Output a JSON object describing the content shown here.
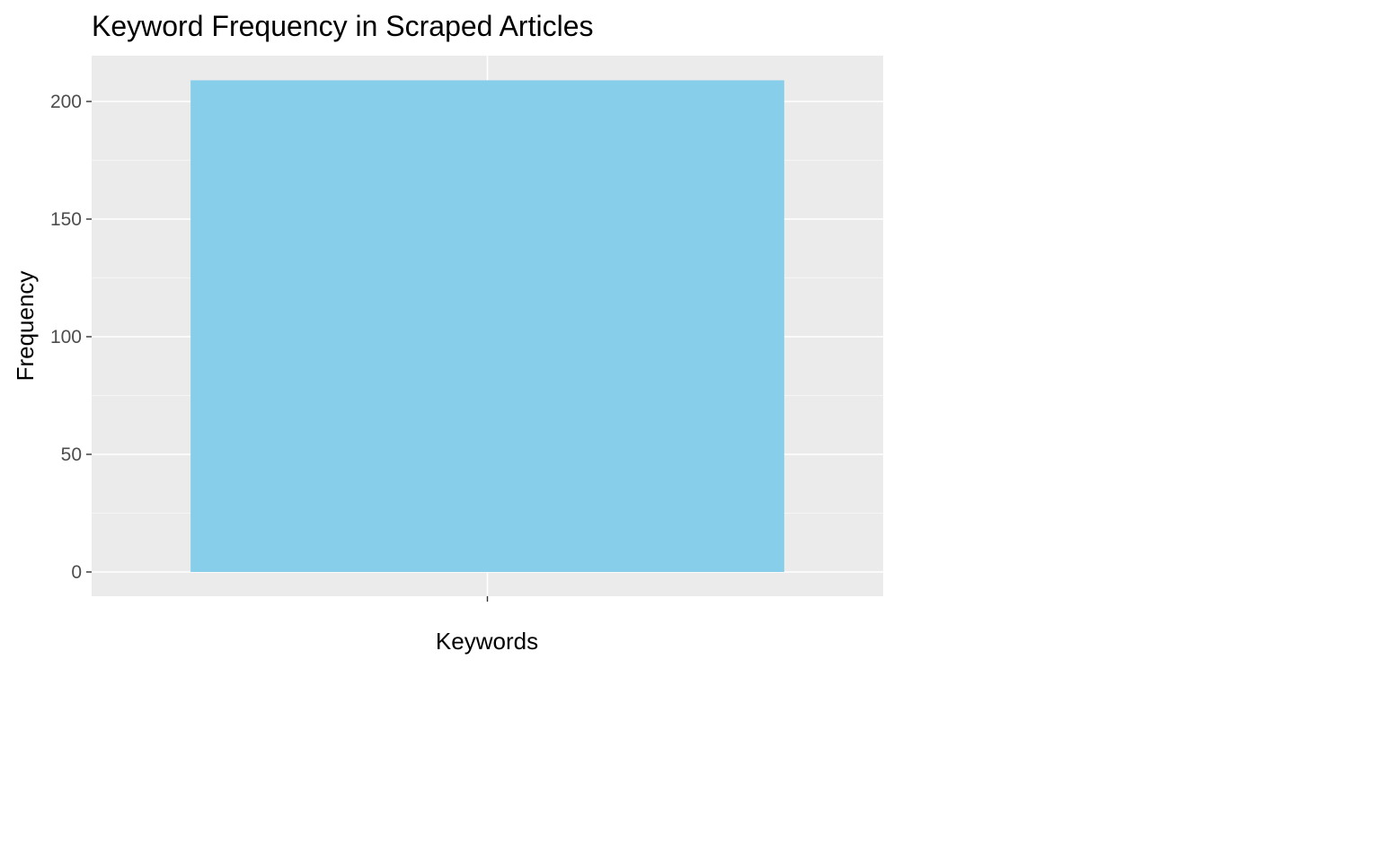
{
  "chart_data": {
    "type": "bar",
    "title": "Keyword Frequency in Scraped Articles",
    "xlabel": "Keywords",
    "ylabel": "Frequency",
    "categories": [
      ""
    ],
    "values": [
      209
    ],
    "ylim": [
      0,
      220
    ],
    "yticks": [
      0,
      50,
      100,
      150,
      200
    ],
    "ytick_labels": [
      "0",
      "50",
      "100",
      "150",
      "200"
    ],
    "grid": true,
    "legend": "none",
    "colors": {
      "bar": "#87ceeb",
      "panel": "#ebebeb",
      "grid_major": "#ffffff",
      "grid_minor": "#f5f5f5",
      "tick_text": "#4d4d4d",
      "text": "#000000"
    }
  }
}
